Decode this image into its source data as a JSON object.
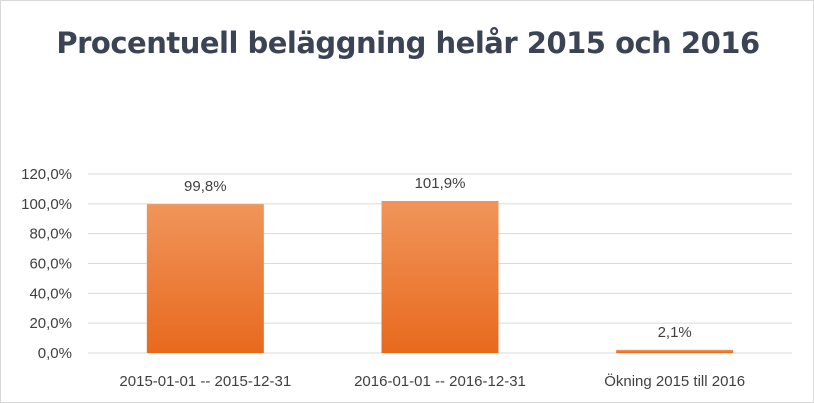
{
  "chart_data": {
    "type": "bar",
    "title": "Procentuell beläggning helår 2015 och 2016",
    "categories": [
      "2015-01-01 -- 2015-12-31",
      "2016-01-01 -- 2016-12-31",
      "Ökning 2015 till 2016"
    ],
    "values": [
      99.8,
      101.9,
      2.1
    ],
    "data_labels": [
      "99,8%",
      "101,9%",
      "2,1%"
    ],
    "yticks": [
      "0,0%",
      "20,0%",
      "40,0%",
      "60,0%",
      "80,0%",
      "100,0%",
      "120,0%"
    ],
    "ylim": [
      0,
      120
    ],
    "grid": true,
    "legend": "none",
    "xlabel": "",
    "ylabel": "",
    "colors": {
      "bar_top": "#f0955a",
      "bar_bottom": "#e8691e",
      "grid": "#d9d9d9",
      "text": "#404040",
      "title": "#3b4454"
    }
  }
}
